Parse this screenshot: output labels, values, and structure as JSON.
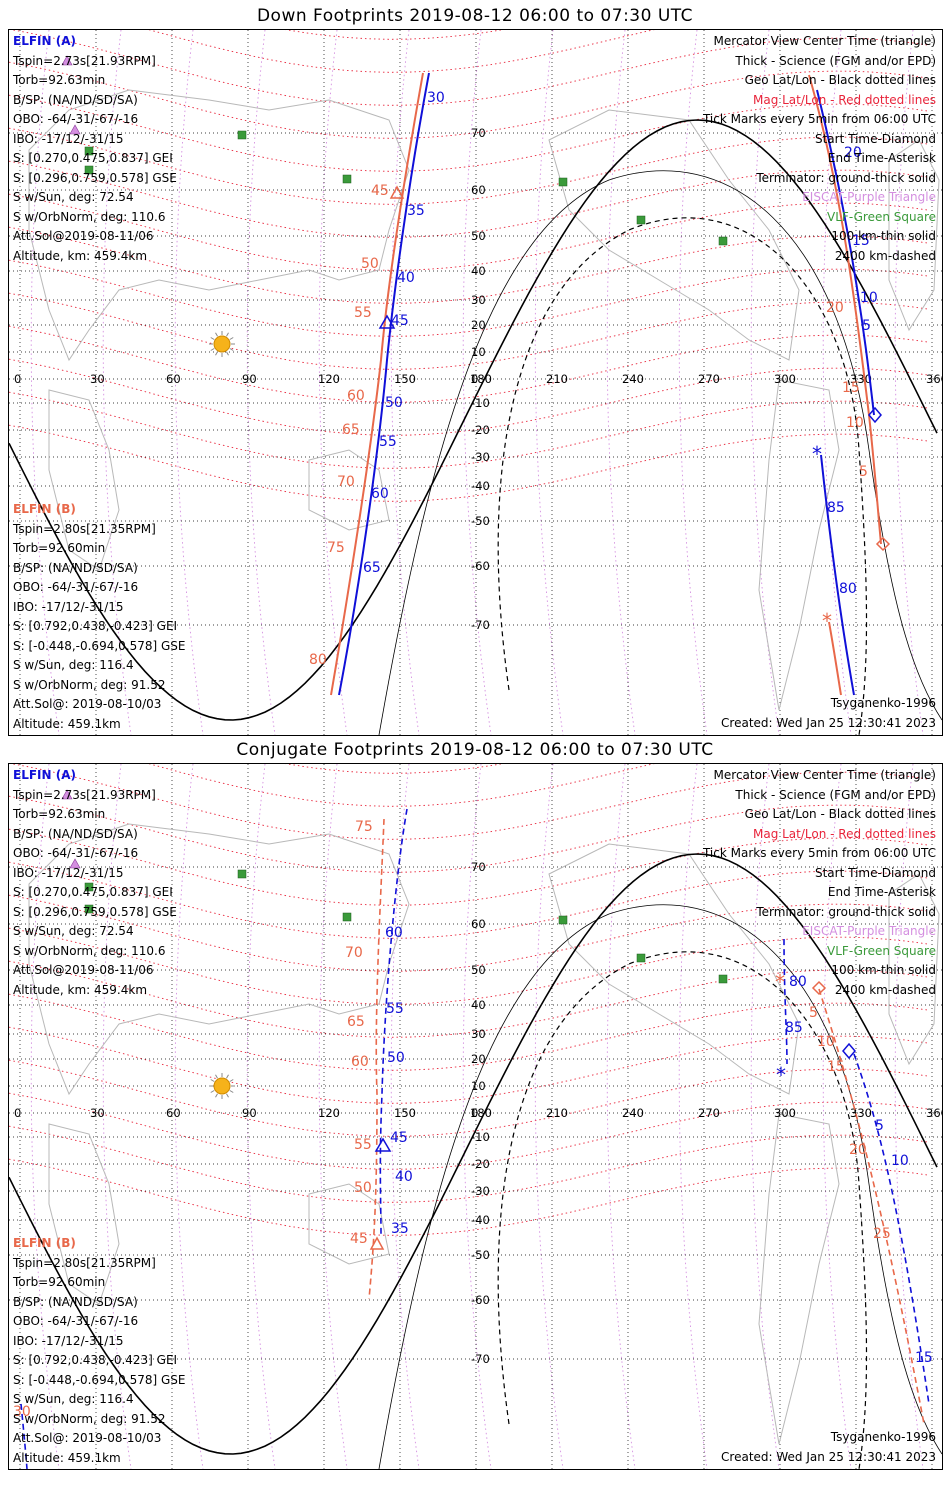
{
  "panels": [
    {
      "title": "Down Footprints 2019-08-12 06:00 to 07:30 UTC",
      "elfin_a": {
        "header": "ELFIN (A)",
        "lines": [
          "Tspin=2.73s[21.93RPM]",
          "Torb=92.63min",
          "B/SP: (NA/ND/SD/SA)",
          "OBO: -64/-31/-67/-16",
          "IBO: -17/12/-31/15",
          "S: [0.270,0.475,0.837] GEI",
          "S: [0.296,0.759,0.578] GSE",
          "S w/Sun, deg: 72.54",
          "S w/OrbNorm, deg: 110.6",
          "Att.Sol@2019-08-11/06",
          "Altitude, km: 459.4km"
        ]
      },
      "elfin_b": {
        "header": "ELFIN (B)",
        "lines": [
          "Tspin=2.80s[21.35RPM]",
          "Torb=92.60min",
          "B/SP: (NA/ND/SD/SA)",
          "OBO: -64/-31/-67/-16",
          "IBO: -17/12/-31/15",
          "S: [0.792,0.438,-0.423] GEI",
          "S: [-0.448,-0.694,0.578] GSE",
          "S w/Sun, deg: 116.4",
          "S w/OrbNorm, deg: 91.52",
          "Att.Sol@: 2019-08-10/03",
          "Altitude: 459.1km"
        ]
      },
      "model": "Tsyganenko-1996",
      "created": "Created: Wed Jan 25 12:30:41 2023",
      "trace_a_labels": [
        "30",
        "35",
        "40",
        "45",
        "50",
        "55",
        "60",
        "65",
        "20",
        "15",
        "10",
        "5",
        "85",
        "80"
      ],
      "trace_b_labels": [
        "45",
        "50",
        "55",
        "60",
        "65",
        "70",
        "75",
        "80",
        "20",
        "15",
        "10",
        "5"
      ]
    },
    {
      "title": "Conjugate Footprints 2019-08-12 06:00 to 07:30 UTC",
      "elfin_a": {
        "header": "ELFIN (A)",
        "lines": [
          "Tspin=2.73s[21.93RPM]",
          "Torb=92.63min",
          "B/SP: (NA/ND/SD/SA)",
          "OBO: -64/-31/-67/-16",
          "IBO: -17/12/-31/15",
          "S: [0.270,0.475,0.837] GEI",
          "S: [0.296,0.759,0.578] GSE",
          "S w/Sun, deg: 72.54",
          "S w/OrbNorm, deg: 110.6",
          "Att.Sol@2019-08-11/06",
          "Altitude, km: 459.4km"
        ]
      },
      "elfin_b": {
        "header": "ELFIN (B)",
        "lines": [
          "Tspin=2.80s[21.35RPM]",
          "Torb=92.60min",
          "B/SP: (NA/ND/SD/SA)",
          "OBO: -64/-31/-67/-16",
          "IBO: -17/12/-31/15",
          "S: [0.792,0.438,-0.423] GEI",
          "S: [-0.448,-0.694,0.578] GSE",
          "S w/Sun, deg: 116.4",
          "S w/OrbNorm, deg: 91.52",
          "Att.Sol@: 2019-08-10/03",
          "Altitude: 459.1km"
        ]
      },
      "model": "Tsyganenko-1996",
      "created": "Created: Wed Jan 25 12:30:41 2023",
      "trace_a_labels": [
        "60",
        "55",
        "50",
        "45",
        "40",
        "35",
        "80",
        "85",
        "5",
        "10",
        "15"
      ],
      "trace_b_labels": [
        "75",
        "70",
        "65",
        "60",
        "55",
        "50",
        "45",
        "5",
        "10",
        "15",
        "20",
        "25",
        "30"
      ]
    }
  ],
  "legend": [
    "Mercator View Center Time (triangle)",
    "Thick - Science (FGM and/or EPD)",
    "Geo Lat/Lon - Black dotted lines",
    "Mag Lat/Lon - Red dotted lines",
    "Tick Marks every 5min from 06:00 UTC",
    "Start Time-Diamond",
    "End Time-Asterisk",
    "Terminator: ground-thick solid",
    "EISCAT-Purple Triangle",
    "VLF-Green Square",
    "100 km-thin solid",
    "2400 km-dashed"
  ],
  "lon_ticks": [
    "0",
    "30",
    "60",
    "90",
    "120",
    "150",
    "180",
    "210",
    "240",
    "270",
    "300",
    "330",
    "360"
  ],
  "lat_ticks": [
    "70",
    "60",
    "50",
    "40",
    "30",
    "20",
    "10",
    "0",
    "-10",
    "-20",
    "-30",
    "-40",
    "-50",
    "-60",
    "-70"
  ],
  "colors": {
    "elfin_a": "#1010d8",
    "elfin_b": "#e8684a",
    "mag_grid": "#e8243a",
    "eiscat": "#d48fe0",
    "vlf": "#3a9a3a"
  }
}
